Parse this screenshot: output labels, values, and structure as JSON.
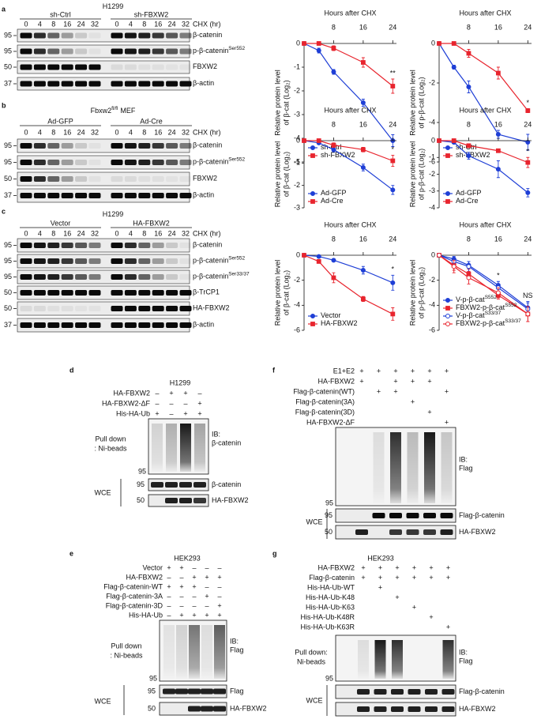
{
  "blots": [
    {
      "letter": "a",
      "cell_line": {
        "label": "H1299"
      },
      "unit": "CHX (hr)",
      "groups": [
        {
          "name": "sh-Ctrl",
          "lanes": [
            0,
            4,
            8,
            16,
            24,
            32
          ]
        },
        {
          "name": "sh-FBXW2",
          "lanes": [
            0,
            4,
            8,
            16,
            24,
            32
          ]
        }
      ],
      "rows": [
        {
          "label": "β-catenin",
          "mw": 95
        },
        {
          "label": "p-β-catenin",
          "sup": "Ser552",
          "mw": 95
        },
        {
          "label": "FBXW2",
          "mw": 50
        },
        {
          "label": "β-actin",
          "mw": 37
        }
      ]
    },
    {
      "letter": "b",
      "cell_line": {
        "label": "Fbxw2",
        "sup": "fl/fl",
        "suffix": "MEF"
      },
      "unit": "CHX (hr)",
      "groups": [
        {
          "name": "Ad-GFP",
          "lanes": [
            0,
            4,
            8,
            16,
            24,
            32
          ]
        },
        {
          "name": "Ad-Cre",
          "lanes": [
            0,
            4,
            8,
            16,
            24,
            32
          ]
        }
      ],
      "rows": [
        {
          "label": "β-catenin",
          "mw": 95
        },
        {
          "label": "p-β-catenin",
          "sup": "Ser552",
          "mw": 95
        },
        {
          "label": "FBXW2",
          "mw": 50
        },
        {
          "label": "β-actin",
          "mw": 37
        }
      ]
    },
    {
      "letter": "c",
      "cell_line": {
        "label": "H1299"
      },
      "unit": "CHX (hr)",
      "groups": [
        {
          "name": "Vector",
          "lanes": [
            0,
            4,
            8,
            16,
            24,
            32
          ]
        },
        {
          "name": "HA-FBXW2",
          "lanes": [
            0,
            4,
            8,
            16,
            24,
            32
          ]
        }
      ],
      "rows": [
        {
          "label": "β-catenin",
          "mw": 95
        },
        {
          "label": "p-β-catenin",
          "sup": "Ser552",
          "mw": 95
        },
        {
          "label": "p-β-catenin",
          "sup": "Ser33/37",
          "mw": 95
        },
        {
          "label": "β-TrCP1",
          "mw": 50
        },
        {
          "label": "HA-FBXW2",
          "mw": 50
        },
        {
          "label": "β-actin",
          "mw": 37
        }
      ]
    }
  ],
  "chart_data": [
    {
      "type": "line",
      "title": "Hours after CHX",
      "ylabel": [
        "Relative protein level",
        "of β-cat (Log₂)"
      ],
      "xlim": [
        0,
        25
      ],
      "xticks": [
        8,
        16,
        24
      ],
      "ylim": [
        -5,
        0
      ],
      "yticks": [
        0,
        -1,
        -2,
        -3,
        -4,
        -5
      ],
      "legend": "lower left",
      "x": [
        0,
        4,
        8,
        16,
        24
      ],
      "series": [
        {
          "name": "sh-Ctrl",
          "color": "#1f3fd6",
          "marker": "circle",
          "values": [
            0,
            -0.3,
            -1.2,
            -2.5,
            -4.1
          ],
          "errors": [
            0,
            0.1,
            0.1,
            0.15,
            0.25
          ]
        },
        {
          "name": "sh-FBXW2",
          "color": "#e8252e",
          "marker": "square",
          "values": [
            0,
            0,
            -0.2,
            -0.8,
            -1.8
          ],
          "errors": [
            0,
            0.05,
            0.1,
            0.2,
            0.3
          ]
        }
      ],
      "annotations": [
        {
          "text": "**",
          "x": 24
        }
      ]
    },
    {
      "type": "line",
      "title": "Hours after CHX",
      "ylabel": [
        "Relative protein level",
        "of p-β-cat (Log₂)"
      ],
      "xlim": [
        0,
        25
      ],
      "xticks": [
        8,
        16,
        24
      ],
      "ylim": [
        -6,
        0
      ],
      "yticks": [
        0,
        -2,
        -4,
        -6
      ],
      "legend": "lower left",
      "x": [
        0,
        4,
        8,
        16,
        24
      ],
      "series": [
        {
          "name": "sh-Ctrl",
          "color": "#1f3fd6",
          "marker": "circle",
          "values": [
            0,
            -1.2,
            -2.2,
            -4.6,
            -5
          ],
          "errors": [
            0,
            0.1,
            0.3,
            0.2,
            0.4
          ]
        },
        {
          "name": "sh-FBXW2",
          "color": "#e8252e",
          "marker": "square",
          "values": [
            0,
            0,
            -0.5,
            -1.5,
            -3.4
          ],
          "errors": [
            0,
            0.05,
            0.2,
            0.3,
            0.1
          ]
        }
      ],
      "annotations": [
        {
          "text": "*",
          "x": 24
        }
      ]
    },
    {
      "type": "line",
      "title": "Hours after CHX",
      "ylabel": [
        "Relative protein level",
        "of β-cat (Log₂)"
      ],
      "xlim": [
        0,
        25
      ],
      "xticks": [
        8,
        16,
        24
      ],
      "ylim": [
        -3,
        0
      ],
      "yticks": [
        0,
        -1,
        -2,
        -3
      ],
      "legend": "lower left",
      "x": [
        0,
        4,
        8,
        16,
        24
      ],
      "series": [
        {
          "name": "Ad-GFP",
          "color": "#1f3fd6",
          "marker": "circle",
          "values": [
            0,
            -0.1,
            -0.4,
            -1.2,
            -2.2
          ],
          "errors": [
            0,
            0.05,
            0.1,
            0.15,
            0.2
          ]
        },
        {
          "name": "Ad-Cre",
          "color": "#e8252e",
          "marker": "square",
          "values": [
            0,
            0,
            -0.2,
            -0.4,
            -0.9
          ],
          "errors": [
            0,
            0.05,
            0.1,
            0.1,
            0.25
          ]
        }
      ],
      "annotations": [
        {
          "text": "*",
          "x": 24
        }
      ]
    },
    {
      "type": "line",
      "title": "Hours after CHX",
      "ylabel": [
        "Relative protein level",
        "of p-β-cat (Log₂)"
      ],
      "xlim": [
        0,
        25
      ],
      "xticks": [
        8,
        16,
        24
      ],
      "ylim": [
        -4,
        0
      ],
      "yticks": [
        0,
        -1,
        -2,
        -3,
        -4
      ],
      "legend": "lower left",
      "x": [
        0,
        4,
        8,
        16,
        24
      ],
      "series": [
        {
          "name": "Ad-GFP",
          "color": "#1f3fd6",
          "marker": "circle",
          "values": [
            0,
            -0.1,
            -0.9,
            -1.7,
            -3.1
          ],
          "errors": [
            0,
            0.05,
            0.2,
            0.5,
            0.25
          ]
        },
        {
          "name": "Ad-Cre",
          "color": "#e8252e",
          "marker": "square",
          "values": [
            0,
            0,
            -0.3,
            -0.6,
            -1.3
          ],
          "errors": [
            0,
            0.05,
            0.05,
            0.1,
            0.3
          ]
        }
      ],
      "annotations": [
        {
          "text": "*",
          "x": 24
        }
      ]
    },
    {
      "type": "line",
      "title": "Hours after CHX",
      "ylabel": [
        "Relative protein level",
        "of β-cat (Log₂)"
      ],
      "xlim": [
        0,
        25
      ],
      "xticks": [
        8,
        16,
        24
      ],
      "ylim": [
        -6,
        0
      ],
      "yticks": [
        0,
        -2,
        -4,
        -6
      ],
      "legend": "lower left",
      "x": [
        0,
        4,
        8,
        16,
        24
      ],
      "series": [
        {
          "name": "Vector",
          "color": "#1f3fd6",
          "marker": "circle",
          "values": [
            0,
            -0.1,
            -0.4,
            -1.2,
            -2.2
          ],
          "errors": [
            0,
            0.1,
            0.1,
            0.3,
            0.6
          ]
        },
        {
          "name": "HA-FBXW2",
          "color": "#e8252e",
          "marker": "square",
          "values": [
            0,
            -0.5,
            -1.8,
            -3.5,
            -4.7
          ],
          "errors": [
            0,
            0.1,
            0.4,
            0.2,
            0.5
          ]
        }
      ],
      "annotations": [
        {
          "text": "*",
          "x": 24
        }
      ]
    },
    {
      "type": "line",
      "title": "Hours after CHX",
      "ylabel": [
        "Relative protein level",
        "of p-β-cat (Log₂)"
      ],
      "xlim": [
        0,
        25
      ],
      "xticks": [
        8,
        16,
        24
      ],
      "ylim": [
        -6,
        0
      ],
      "yticks": [
        0,
        -2,
        -4,
        -6
      ],
      "legend": "lower left",
      "x": [
        0,
        4,
        8,
        16,
        24
      ],
      "series": [
        {
          "name": "V-p-β-cat",
          "sup": "S552",
          "color": "#1f3fd6",
          "marker": "circle",
          "values": [
            0,
            -0.3,
            -0.8,
            -2.4,
            -4.2
          ],
          "errors": [
            0,
            0.2,
            0.3,
            0.3,
            0.5
          ]
        },
        {
          "name": "FBXW2-p-β-cat",
          "sup": "S552",
          "color": "#e8252e",
          "marker": "square",
          "values": [
            0,
            -0.8,
            -1.5,
            -3.2,
            -4.7
          ],
          "errors": [
            0,
            0.4,
            0.4,
            0.3,
            0.6
          ]
        },
        {
          "name": "V-p-β-cat",
          "sup": "S33/37",
          "color": "#1f3fd6",
          "marker": "circle",
          "open": true,
          "values": [
            0,
            -0.5,
            -0.9,
            -2.6,
            -4.3
          ],
          "errors": [
            0,
            0.3,
            0.4,
            0.3,
            0.5
          ]
        },
        {
          "name": "FBXW2-p-β-cat",
          "sup": "S33/37",
          "color": "#e8252e",
          "marker": "circle",
          "open": true,
          "values": [
            0,
            -0.9,
            -1.8,
            -3,
            -4.7
          ],
          "errors": [
            0,
            0.5,
            0.5,
            0.4,
            0.6
          ]
        }
      ],
      "annotations": [
        {
          "text": "*",
          "x": 16
        },
        {
          "text": "NS",
          "x": 24
        }
      ]
    }
  ],
  "assays": [
    {
      "letter": "d",
      "cell_line": "H1299",
      "conditions": [
        {
          "label": "HA-FBXW2",
          "cells": [
            "–",
            "+",
            "+",
            "–"
          ]
        },
        {
          "label": "HA-FBXW2-ΔF",
          "cells": [
            "–",
            "–",
            "–",
            "+"
          ]
        },
        {
          "label": "His-HA-Ub",
          "cells": [
            "+",
            "–",
            "+",
            "+"
          ]
        }
      ],
      "pulldown": [
        "Pull down",
        ": Ni-beads"
      ],
      "ib": [
        "IB:",
        "β-catenin"
      ],
      "mw": [
        95
      ],
      "wce_label": "WCE",
      "wce": [
        {
          "label": "β-catenin",
          "mw": 95
        },
        {
          "label": "HA-FBXW2",
          "mw": 50
        }
      ]
    },
    {
      "letter": "e",
      "cell_line": "HEK293",
      "conditions": [
        {
          "label": "Vector",
          "cells": [
            "+",
            "+",
            "–",
            "–",
            "–"
          ]
        },
        {
          "label": "HA-FBXW2",
          "cells": [
            "–",
            "–",
            "+",
            "+",
            "+"
          ]
        },
        {
          "label": "Flag-β-catenin-WT",
          "cells": [
            "+",
            "+",
            "+",
            "–",
            "–"
          ]
        },
        {
          "label": "Flag-β-catenin-3A",
          "cells": [
            "–",
            "–",
            "–",
            "+",
            "–"
          ]
        },
        {
          "label": "Flag-β-catenin-3D",
          "cells": [
            "–",
            "–",
            "–",
            "–",
            "+"
          ]
        },
        {
          "label": "His-HA-Ub",
          "cells": [
            "–",
            "+",
            "+",
            "+",
            "+"
          ]
        }
      ],
      "pulldown": [
        "Pull down",
        ": Ni-beads"
      ],
      "ib": [
        "IB:",
        "Flag"
      ],
      "mw": [
        95
      ],
      "wce_label": "WCE",
      "wce": [
        {
          "label": "Flag",
          "mw": 95
        },
        {
          "label": "HA-FBXW2",
          "mw": 50
        }
      ]
    },
    {
      "letter": "f",
      "conditions": [
        {
          "label": "E1+E2",
          "cells": [
            "+",
            "+",
            "+",
            "+",
            "+",
            "+"
          ]
        },
        {
          "label": "HA-FBXW2",
          "cells": [
            "+",
            null,
            "+",
            "+",
            "+",
            null
          ]
        },
        {
          "label": "Flag-β-catenin(WT)",
          "cells": [
            null,
            "+",
            "+",
            null,
            null,
            "+"
          ]
        },
        {
          "label": "Flag-β-catenin(3A)",
          "cells": [
            null,
            null,
            null,
            "+",
            null,
            null
          ]
        },
        {
          "label": "Flag-β-catenin(3D)",
          "cells": [
            null,
            null,
            null,
            null,
            "+",
            null
          ]
        },
        {
          "label": "HA-FBXW2-ΔF",
          "cells": [
            null,
            null,
            null,
            null,
            null,
            "+"
          ]
        }
      ],
      "ib": [
        "IB:",
        "Flag"
      ],
      "mw": [
        95
      ],
      "wce_label": "WCE",
      "wce": [
        {
          "label": "Flag-β-catenin",
          "mw": 95
        },
        {
          "label": "HA-FBXW2",
          "mw": 50
        }
      ]
    },
    {
      "letter": "g",
      "cell_line": "HEK293",
      "conditions": [
        {
          "label": "HA-FBXW2",
          "cells": [
            "+",
            "+",
            "+",
            "+",
            "+",
            "+"
          ]
        },
        {
          "label": "Flag-β-catenin",
          "cells": [
            "+",
            "+",
            "+",
            "+",
            "+",
            "+"
          ]
        },
        {
          "label": "His-HA-Ub-WT",
          "cells": [
            null,
            "+",
            null,
            null,
            null,
            null
          ]
        },
        {
          "label": "His-HA-Ub-K48",
          "cells": [
            null,
            null,
            "+",
            null,
            null,
            null
          ]
        },
        {
          "label": "His-HA-Ub-K63",
          "cells": [
            null,
            null,
            null,
            "+",
            null,
            null
          ]
        },
        {
          "label": "His-HA-Ub-K48R",
          "cells": [
            null,
            null,
            null,
            null,
            "+",
            null
          ]
        },
        {
          "label": "His-HA-Ub-K63R",
          "cells": [
            null,
            null,
            null,
            null,
            null,
            "+"
          ]
        }
      ],
      "pulldown": [
        "Pull down:",
        "Ni-beads"
      ],
      "ib": [
        "IB:",
        "Flag"
      ],
      "mw": [
        95
      ],
      "wce_label": "WCE",
      "wce": [
        {
          "label": "Flag-β-catenin"
        },
        {
          "label": "HA-FBXW2"
        }
      ]
    }
  ]
}
